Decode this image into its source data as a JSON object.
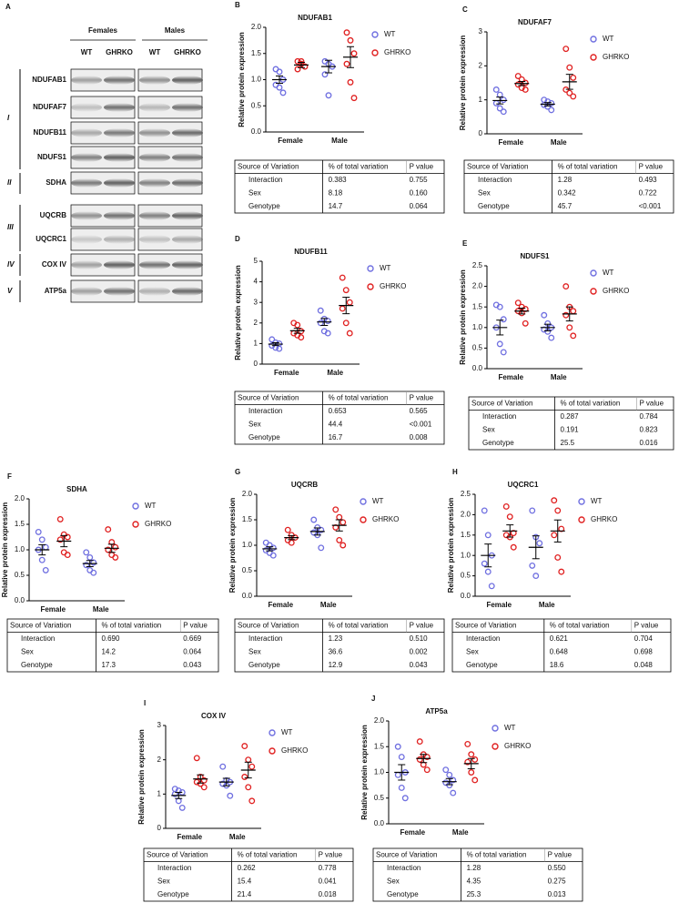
{
  "blot": {
    "panel": "A",
    "groups": [
      "Females",
      "Males"
    ],
    "lanes": [
      "WT",
      "GHRKO",
      "WT",
      "GHRKO"
    ],
    "rows": [
      "NDUFAB1",
      "NDUFAF7",
      "NDUFB11",
      "NDUFS1",
      "SDHA",
      "UQCRB",
      "UQCRC1",
      "COX IV",
      "ATP5a"
    ],
    "classes": [
      "I",
      "II",
      "III",
      "IV",
      "V"
    ]
  },
  "chart_data": [
    {
      "type": "dot",
      "panel": "B",
      "title": "NDUFAB1",
      "ylabel": "Relative protein expression",
      "categories": [
        "Female",
        "Male"
      ],
      "ylim": [
        0,
        2
      ],
      "yticks": [
        {
          "value": 0,
          "label": "0.0"
        },
        {
          "value": 0.5,
          "label": "0.5"
        },
        {
          "value": 1,
          "label": "1.0"
        },
        {
          "value": 1.5,
          "label": "1.5"
        },
        {
          "value": 2,
          "label": "2.0"
        }
      ],
      "series": [
        {
          "name": "WT",
          "color": "#6f6fe0",
          "values": [
            1.0,
            1.25
          ],
          "errors": [
            0.07,
            0.12
          ],
          "points": [
            [
              1.2,
              1.15,
              1.0,
              0.9,
              0.85,
              0.75
            ],
            [
              1.35,
              1.3,
              1.25,
              1.1,
              0.7
            ]
          ]
        },
        {
          "name": "GHRKO",
          "color": "#e02020",
          "values": [
            1.28,
            1.43
          ],
          "errors": [
            0.05,
            0.2
          ],
          "points": [
            [
              1.35,
              1.3,
              1.25,
              1.2,
              1.35
            ],
            [
              1.9,
              1.75,
              1.5,
              1.3,
              0.95,
              0.65
            ]
          ]
        }
      ],
      "table": {
        "header": [
          "Source of Variation",
          "% of total variation",
          "P value"
        ],
        "rows": [
          [
            "Interaction",
            "0.383",
            "0.755"
          ],
          [
            "Sex",
            "8.18",
            "0.160"
          ],
          [
            "Genotype",
            "14.7",
            "0.064"
          ]
        ]
      }
    },
    {
      "type": "dot",
      "panel": "C",
      "title": "NDUFAF7",
      "ylabel": "Relative protein expression",
      "categories": [
        "Female",
        "Male"
      ],
      "ylim": [
        0,
        3
      ],
      "yticks": [
        0,
        1,
        2,
        3
      ],
      "series": [
        {
          "name": "WT",
          "color": "#6f6fe0",
          "values": [
            0.98,
            0.87
          ],
          "errors": [
            0.1,
            0.05
          ],
          "points": [
            [
              1.3,
              1.15,
              1.0,
              0.9,
              0.75,
              0.65
            ],
            [
              1.0,
              0.95,
              0.9,
              0.85,
              0.8,
              0.7
            ]
          ]
        },
        {
          "name": "GHRKO",
          "color": "#e02020",
          "values": [
            1.48,
            1.53
          ],
          "errors": [
            0.06,
            0.22
          ],
          "points": [
            [
              1.7,
              1.6,
              1.5,
              1.45,
              1.35,
              1.3
            ],
            [
              2.5,
              1.95,
              1.65,
              1.3,
              1.2,
              1.1
            ]
          ]
        }
      ],
      "table": {
        "header": [
          "Source of Variation",
          "% of total variation",
          "P value"
        ],
        "rows": [
          [
            "Interaction",
            "1.28",
            "0.493"
          ],
          [
            "Sex",
            "0.342",
            "0.722"
          ],
          [
            "Genotype",
            "45.7",
            "<0.001"
          ]
        ]
      }
    },
    {
      "type": "dot",
      "panel": "D",
      "title": "NDUFB11",
      "ylabel": "Relative protein expression",
      "categories": [
        "Female",
        "Male"
      ],
      "ylim": [
        0,
        5
      ],
      "yticks": [
        0,
        1,
        2,
        3,
        4,
        5
      ],
      "series": [
        {
          "name": "WT",
          "color": "#6f6fe0",
          "values": [
            0.97,
            2.05
          ],
          "errors": [
            0.07,
            0.17
          ],
          "points": [
            [
              1.2,
              1.05,
              1.0,
              0.9,
              0.8,
              0.75
            ],
            [
              2.6,
              2.2,
              2.1,
              2.0,
              1.6,
              1.5
            ]
          ]
        },
        {
          "name": "GHRKO",
          "color": "#e02020",
          "values": [
            1.62,
            2.85
          ],
          "errors": [
            0.12,
            0.4
          ],
          "points": [
            [
              2.0,
              1.9,
              1.6,
              1.5,
              1.4,
              1.3
            ],
            [
              4.2,
              3.6,
              3.0,
              2.7,
              2.0,
              1.5
            ]
          ]
        }
      ],
      "table": {
        "header": [
          "Source of Variation",
          "% of total variation",
          "P value"
        ],
        "rows": [
          [
            "Interaction",
            "0.653",
            "0.565"
          ],
          [
            "Sex",
            "44.4",
            "<0.001"
          ],
          [
            "Genotype",
            "16.7",
            "0.008"
          ]
        ]
      }
    },
    {
      "type": "dot",
      "panel": "E",
      "title": "NDUFS1",
      "ylabel": "Relative protein expression",
      "categories": [
        "Female",
        "Male"
      ],
      "ylim": [
        0,
        2.5
      ],
      "yticks": [
        {
          "value": 0,
          "label": "0.0"
        },
        {
          "value": 0.5,
          "label": "0.5"
        },
        {
          "value": 1,
          "label": "1.0"
        },
        {
          "value": 1.5,
          "label": "1.5"
        },
        {
          "value": 2,
          "label": "2.0"
        },
        {
          "value": 2.5,
          "label": "2.5"
        }
      ],
      "series": [
        {
          "name": "WT",
          "color": "#6f6fe0",
          "values": [
            1.0,
            1.0
          ],
          "errors": [
            0.18,
            0.08
          ],
          "points": [
            [
              1.55,
              1.5,
              1.2,
              1.0,
              0.6,
              0.4
            ],
            [
              1.3,
              1.1,
              1.0,
              0.95,
              0.9,
              0.75
            ]
          ]
        },
        {
          "name": "GHRKO",
          "color": "#e02020",
          "values": [
            1.4,
            1.33
          ],
          "errors": [
            0.07,
            0.17
          ],
          "points": [
            [
              1.6,
              1.5,
              1.45,
              1.4,
              1.35,
              1.1
            ],
            [
              2.0,
              1.5,
              1.4,
              1.3,
              1.0,
              0.8
            ]
          ]
        }
      ],
      "table": {
        "header": [
          "Source of Variation",
          "% of total variation",
          "P value"
        ],
        "rows": [
          [
            "Interaction",
            "0.287",
            "0.784"
          ],
          [
            "Sex",
            "0.191",
            "0.823"
          ],
          [
            "Genotype",
            "25.5",
            "0.016"
          ]
        ]
      }
    },
    {
      "type": "dot",
      "panel": "F",
      "title": "SDHA",
      "ylabel": "Relative protein expression",
      "categories": [
        "Female",
        "Male"
      ],
      "ylim": [
        0,
        2
      ],
      "yticks": [
        {
          "value": 0,
          "label": "0.0"
        },
        {
          "value": 0.5,
          "label": "0.5"
        },
        {
          "value": 1,
          "label": "1.0"
        },
        {
          "value": 1.5,
          "label": "1.5"
        },
        {
          "value": 2,
          "label": "2.0"
        }
      ],
      "series": [
        {
          "name": "WT",
          "color": "#6f6fe0",
          "values": [
            1.0,
            0.73
          ],
          "errors": [
            0.1,
            0.06
          ],
          "points": [
            [
              1.35,
              1.2,
              1.05,
              1.0,
              0.8,
              0.6
            ],
            [
              0.95,
              0.85,
              0.75,
              0.7,
              0.6,
              0.55
            ]
          ]
        },
        {
          "name": "GHRKO",
          "color": "#e02020",
          "values": [
            1.17,
            1.03
          ],
          "errors": [
            0.11,
            0.08
          ],
          "points": [
            [
              1.6,
              1.3,
              1.25,
              1.2,
              0.95,
              0.9
            ],
            [
              1.4,
              1.15,
              1.05,
              1.0,
              0.9,
              0.85
            ]
          ]
        }
      ],
      "table": {
        "header": [
          "Source of Variation",
          "% of total variation",
          "P value"
        ],
        "rows": [
          [
            "Interaction",
            "0.690",
            "0.669"
          ],
          [
            "Sex",
            "14.2",
            "0.064"
          ],
          [
            "Genotype",
            "17.3",
            "0.043"
          ]
        ]
      }
    },
    {
      "type": "dot",
      "panel": "G",
      "title": "UQCRB",
      "ylabel": "Relative protein expression",
      "categories": [
        "Female",
        "Male"
      ],
      "ylim": [
        0,
        2
      ],
      "yticks": [
        {
          "value": 0,
          "label": "0.0"
        },
        {
          "value": 0.5,
          "label": "0.5"
        },
        {
          "value": 1,
          "label": "1.0"
        },
        {
          "value": 1.5,
          "label": "1.5"
        },
        {
          "value": 2,
          "label": "2.0"
        }
      ],
      "series": [
        {
          "name": "WT",
          "color": "#6f6fe0",
          "values": [
            0.93,
            1.27
          ],
          "errors": [
            0.04,
            0.07
          ],
          "points": [
            [
              1.05,
              1.0,
              0.95,
              0.9,
              0.85,
              0.8
            ],
            [
              1.5,
              1.35,
              1.3,
              1.25,
              1.2,
              0.95
            ]
          ]
        },
        {
          "name": "GHRKO",
          "color": "#e02020",
          "values": [
            1.15,
            1.39
          ],
          "errors": [
            0.04,
            0.11
          ],
          "points": [
            [
              1.3,
              1.2,
              1.15,
              1.1,
              1.05
            ],
            [
              1.7,
              1.55,
              1.45,
              1.35,
              1.1,
              1.0
            ]
          ]
        }
      ],
      "table": {
        "header": [
          "Source of Variation",
          "% of total variation",
          "P value"
        ],
        "rows": [
          [
            "Interaction",
            "1.23",
            "0.510"
          ],
          [
            "Sex",
            "36.6",
            "0.002"
          ],
          [
            "Genotype",
            "12.9",
            "0.043"
          ]
        ]
      }
    },
    {
      "type": "dot",
      "panel": "H",
      "title": "UQCRC1",
      "ylabel": "Relative protein expression",
      "categories": [
        "Female",
        "Male"
      ],
      "ylim": [
        0,
        2.5
      ],
      "yticks": [
        {
          "value": 0,
          "label": "0.0"
        },
        {
          "value": 0.5,
          "label": "0.5"
        },
        {
          "value": 1,
          "label": "1.0"
        },
        {
          "value": 1.5,
          "label": "1.5"
        },
        {
          "value": 2,
          "label": "2.0"
        },
        {
          "value": 2.5,
          "label": "2.5"
        }
      ],
      "series": [
        {
          "name": "WT",
          "color": "#6f6fe0",
          "values": [
            1.0,
            1.2
          ],
          "errors": [
            0.28,
            0.28
          ],
          "points": [
            [
              2.1,
              1.5,
              1.0,
              0.8,
              0.6,
              0.25
            ],
            [
              2.1,
              1.45,
              1.3,
              0.75,
              0.5
            ]
          ]
        },
        {
          "name": "GHRKO",
          "color": "#e02020",
          "values": [
            1.6,
            1.6
          ],
          "errors": [
            0.15,
            0.27
          ],
          "points": [
            [
              2.2,
              1.95,
              1.55,
              1.5,
              1.45,
              1.2
            ],
            [
              2.35,
              2.1,
              1.65,
              1.5,
              0.95,
              0.6
            ]
          ]
        }
      ],
      "table": {
        "header": [
          "Source of Variation",
          "% of total variation",
          "P value"
        ],
        "rows": [
          [
            "Interaction",
            "0.621",
            "0.704"
          ],
          [
            "Sex",
            "0.648",
            "0.698"
          ],
          [
            "Genotype",
            "18.6",
            "0.048"
          ]
        ]
      }
    },
    {
      "type": "dot",
      "panel": "I",
      "title": "COX IV",
      "ylabel": "Relative protein expression",
      "categories": [
        "Female",
        "Male"
      ],
      "ylim": [
        0,
        3
      ],
      "yticks": [
        0,
        1,
        2,
        3
      ],
      "series": [
        {
          "name": "WT",
          "color": "#6f6fe0",
          "values": [
            0.96,
            1.35
          ],
          "errors": [
            0.09,
            0.11
          ],
          "points": [
            [
              1.15,
              1.1,
              1.05,
              1.0,
              0.8,
              0.6
            ],
            [
              1.8,
              1.4,
              1.35,
              1.3,
              1.25,
              0.95
            ]
          ]
        },
        {
          "name": "GHRKO",
          "color": "#e02020",
          "values": [
            1.44,
            1.7
          ],
          "errors": [
            0.12,
            0.23
          ],
          "points": [
            [
              2.05,
              1.5,
              1.4,
              1.35,
              1.3,
              1.2
            ],
            [
              2.4,
              2.0,
              1.8,
              1.5,
              1.2,
              0.8
            ]
          ]
        }
      ],
      "table": {
        "header": [
          "Source of Variation",
          "% of total variation",
          "P value"
        ],
        "rows": [
          [
            "Interaction",
            "0.262",
            "0.778"
          ],
          [
            "Sex",
            "15.4",
            "0.041"
          ],
          [
            "Genotype",
            "21.4",
            "0.018"
          ]
        ]
      }
    },
    {
      "type": "dot",
      "panel": "J",
      "title": "ATP5a",
      "ylabel": "Relative protein expression",
      "categories": [
        "Female",
        "Male"
      ],
      "ylim": [
        0,
        2
      ],
      "yticks": [
        {
          "value": 0,
          "label": "0.0"
        },
        {
          "value": 0.5,
          "label": "0.5"
        },
        {
          "value": 1,
          "label": "1.0"
        },
        {
          "value": 1.5,
          "label": "1.5"
        },
        {
          "value": 2,
          "label": "2.0"
        }
      ],
      "series": [
        {
          "name": "WT",
          "color": "#6f6fe0",
          "values": [
            1.0,
            0.82
          ],
          "errors": [
            0.15,
            0.06
          ],
          "points": [
            [
              1.5,
              1.3,
              1.0,
              0.95,
              0.7,
              0.5
            ],
            [
              1.05,
              0.95,
              0.85,
              0.8,
              0.75,
              0.6
            ]
          ]
        },
        {
          "name": "GHRKO",
          "color": "#e02020",
          "values": [
            1.27,
            1.17
          ],
          "errors": [
            0.08,
            0.1
          ],
          "points": [
            [
              1.6,
              1.35,
              1.3,
              1.25,
              1.15,
              1.05
            ],
            [
              1.55,
              1.35,
              1.25,
              1.2,
              1.0,
              0.85
            ]
          ]
        }
      ],
      "table": {
        "header": [
          "Source of Variation",
          "% of total variation",
          "P value"
        ],
        "rows": [
          [
            "Interaction",
            "1.28",
            "0.550"
          ],
          [
            "Sex",
            "4.35",
            "0.275"
          ],
          [
            "Genotype",
            "25.3",
            "0.013"
          ]
        ]
      }
    }
  ]
}
